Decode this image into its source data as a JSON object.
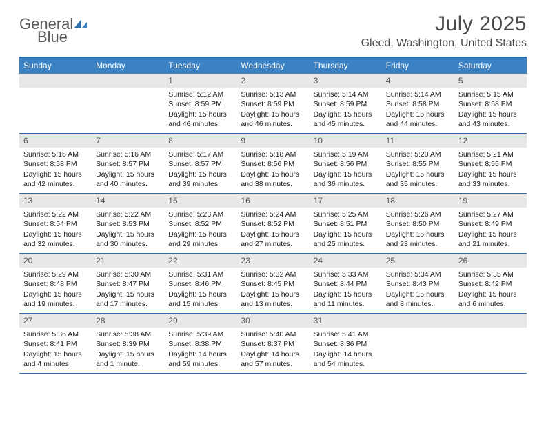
{
  "logo": {
    "word1": "General",
    "word2": "Blue"
  },
  "title": "July 2025",
  "location": "Gleed, Washington, United States",
  "colors": {
    "header_bar": "#3b82c4",
    "divider": "#2f6fa8",
    "daynum_bg": "#e8e8e8",
    "text": "#222222",
    "muted": "#555555",
    "logo_gray": "#5a5a5a",
    "logo_blue": "#3b82c4",
    "bg": "#ffffff"
  },
  "dow": [
    "Sunday",
    "Monday",
    "Tuesday",
    "Wednesday",
    "Thursday",
    "Friday",
    "Saturday"
  ],
  "weeks": [
    [
      null,
      null,
      {
        "n": "1",
        "sr": "Sunrise: 5:12 AM",
        "ss": "Sunset: 8:59 PM",
        "dl": "Daylight: 15 hours and 46 minutes."
      },
      {
        "n": "2",
        "sr": "Sunrise: 5:13 AM",
        "ss": "Sunset: 8:59 PM",
        "dl": "Daylight: 15 hours and 46 minutes."
      },
      {
        "n": "3",
        "sr": "Sunrise: 5:14 AM",
        "ss": "Sunset: 8:59 PM",
        "dl": "Daylight: 15 hours and 45 minutes."
      },
      {
        "n": "4",
        "sr": "Sunrise: 5:14 AM",
        "ss": "Sunset: 8:58 PM",
        "dl": "Daylight: 15 hours and 44 minutes."
      },
      {
        "n": "5",
        "sr": "Sunrise: 5:15 AM",
        "ss": "Sunset: 8:58 PM",
        "dl": "Daylight: 15 hours and 43 minutes."
      }
    ],
    [
      {
        "n": "6",
        "sr": "Sunrise: 5:16 AM",
        "ss": "Sunset: 8:58 PM",
        "dl": "Daylight: 15 hours and 42 minutes."
      },
      {
        "n": "7",
        "sr": "Sunrise: 5:16 AM",
        "ss": "Sunset: 8:57 PM",
        "dl": "Daylight: 15 hours and 40 minutes."
      },
      {
        "n": "8",
        "sr": "Sunrise: 5:17 AM",
        "ss": "Sunset: 8:57 PM",
        "dl": "Daylight: 15 hours and 39 minutes."
      },
      {
        "n": "9",
        "sr": "Sunrise: 5:18 AM",
        "ss": "Sunset: 8:56 PM",
        "dl": "Daylight: 15 hours and 38 minutes."
      },
      {
        "n": "10",
        "sr": "Sunrise: 5:19 AM",
        "ss": "Sunset: 8:56 PM",
        "dl": "Daylight: 15 hours and 36 minutes."
      },
      {
        "n": "11",
        "sr": "Sunrise: 5:20 AM",
        "ss": "Sunset: 8:55 PM",
        "dl": "Daylight: 15 hours and 35 minutes."
      },
      {
        "n": "12",
        "sr": "Sunrise: 5:21 AM",
        "ss": "Sunset: 8:55 PM",
        "dl": "Daylight: 15 hours and 33 minutes."
      }
    ],
    [
      {
        "n": "13",
        "sr": "Sunrise: 5:22 AM",
        "ss": "Sunset: 8:54 PM",
        "dl": "Daylight: 15 hours and 32 minutes."
      },
      {
        "n": "14",
        "sr": "Sunrise: 5:22 AM",
        "ss": "Sunset: 8:53 PM",
        "dl": "Daylight: 15 hours and 30 minutes."
      },
      {
        "n": "15",
        "sr": "Sunrise: 5:23 AM",
        "ss": "Sunset: 8:52 PM",
        "dl": "Daylight: 15 hours and 29 minutes."
      },
      {
        "n": "16",
        "sr": "Sunrise: 5:24 AM",
        "ss": "Sunset: 8:52 PM",
        "dl": "Daylight: 15 hours and 27 minutes."
      },
      {
        "n": "17",
        "sr": "Sunrise: 5:25 AM",
        "ss": "Sunset: 8:51 PM",
        "dl": "Daylight: 15 hours and 25 minutes."
      },
      {
        "n": "18",
        "sr": "Sunrise: 5:26 AM",
        "ss": "Sunset: 8:50 PM",
        "dl": "Daylight: 15 hours and 23 minutes."
      },
      {
        "n": "19",
        "sr": "Sunrise: 5:27 AM",
        "ss": "Sunset: 8:49 PM",
        "dl": "Daylight: 15 hours and 21 minutes."
      }
    ],
    [
      {
        "n": "20",
        "sr": "Sunrise: 5:29 AM",
        "ss": "Sunset: 8:48 PM",
        "dl": "Daylight: 15 hours and 19 minutes."
      },
      {
        "n": "21",
        "sr": "Sunrise: 5:30 AM",
        "ss": "Sunset: 8:47 PM",
        "dl": "Daylight: 15 hours and 17 minutes."
      },
      {
        "n": "22",
        "sr": "Sunrise: 5:31 AM",
        "ss": "Sunset: 8:46 PM",
        "dl": "Daylight: 15 hours and 15 minutes."
      },
      {
        "n": "23",
        "sr": "Sunrise: 5:32 AM",
        "ss": "Sunset: 8:45 PM",
        "dl": "Daylight: 15 hours and 13 minutes."
      },
      {
        "n": "24",
        "sr": "Sunrise: 5:33 AM",
        "ss": "Sunset: 8:44 PM",
        "dl": "Daylight: 15 hours and 11 minutes."
      },
      {
        "n": "25",
        "sr": "Sunrise: 5:34 AM",
        "ss": "Sunset: 8:43 PM",
        "dl": "Daylight: 15 hours and 8 minutes."
      },
      {
        "n": "26",
        "sr": "Sunrise: 5:35 AM",
        "ss": "Sunset: 8:42 PM",
        "dl": "Daylight: 15 hours and 6 minutes."
      }
    ],
    [
      {
        "n": "27",
        "sr": "Sunrise: 5:36 AM",
        "ss": "Sunset: 8:41 PM",
        "dl": "Daylight: 15 hours and 4 minutes."
      },
      {
        "n": "28",
        "sr": "Sunrise: 5:38 AM",
        "ss": "Sunset: 8:39 PM",
        "dl": "Daylight: 15 hours and 1 minute."
      },
      {
        "n": "29",
        "sr": "Sunrise: 5:39 AM",
        "ss": "Sunset: 8:38 PM",
        "dl": "Daylight: 14 hours and 59 minutes."
      },
      {
        "n": "30",
        "sr": "Sunrise: 5:40 AM",
        "ss": "Sunset: 8:37 PM",
        "dl": "Daylight: 14 hours and 57 minutes."
      },
      {
        "n": "31",
        "sr": "Sunrise: 5:41 AM",
        "ss": "Sunset: 8:36 PM",
        "dl": "Daylight: 14 hours and 54 minutes."
      },
      null,
      null
    ]
  ]
}
